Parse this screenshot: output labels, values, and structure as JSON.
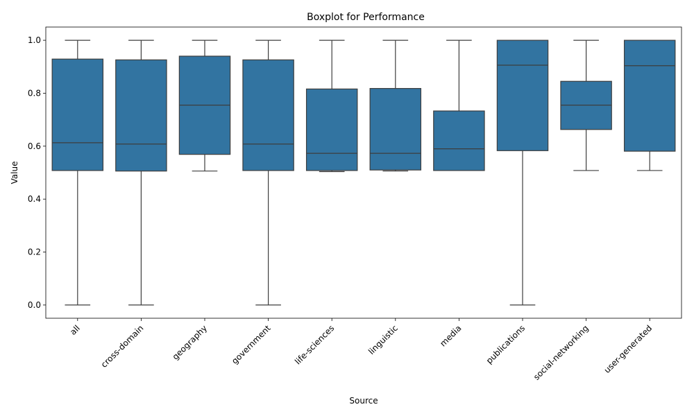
{
  "colors": {
    "box_fill": "#3274a1",
    "line": "#3d3d3d",
    "axis": "#000000"
  },
  "chart_data": {
    "type": "box",
    "title": "Boxplot for Performance",
    "xlabel": "Source",
    "ylabel": "Value",
    "ylim": [
      -0.05,
      1.05
    ],
    "yticks": [
      0.0,
      0.2,
      0.4,
      0.6,
      0.8,
      1.0
    ],
    "ytick_labels": [
      "0.0",
      "0.2",
      "0.4",
      "0.6",
      "0.8",
      "1.0"
    ],
    "categories": [
      "all",
      "cross-domain",
      "geography",
      "government",
      "life-sciences",
      "linguistic",
      "media",
      "publications",
      "social-networking",
      "user-generated"
    ],
    "boxes": [
      {
        "category": "all",
        "whisker_low": 0.0,
        "q1": 0.508,
        "median": 0.613,
        "q3": 0.929,
        "whisker_high": 1.0
      },
      {
        "category": "cross-domain",
        "whisker_low": 0.0,
        "q1": 0.506,
        "median": 0.608,
        "q3": 0.926,
        "whisker_high": 1.0
      },
      {
        "category": "geography",
        "whisker_low": 0.506,
        "q1": 0.569,
        "median": 0.755,
        "q3": 0.94,
        "whisker_high": 1.0
      },
      {
        "category": "government",
        "whisker_low": 0.0,
        "q1": 0.508,
        "median": 0.608,
        "q3": 0.926,
        "whisker_high": 1.0
      },
      {
        "category": "life-sciences",
        "whisker_low": 0.504,
        "q1": 0.508,
        "median": 0.573,
        "q3": 0.816,
        "whisker_high": 1.0
      },
      {
        "category": "linguistic",
        "whisker_low": 0.506,
        "q1": 0.51,
        "median": 0.573,
        "q3": 0.818,
        "whisker_high": 1.0
      },
      {
        "category": "media",
        "whisker_low": 0.508,
        "q1": 0.508,
        "median": 0.59,
        "q3": 0.733,
        "whisker_high": 1.0
      },
      {
        "category": "publications",
        "whisker_low": 0.0,
        "q1": 0.583,
        "median": 0.906,
        "q3": 1.0,
        "whisker_high": 1.0
      },
      {
        "category": "social-networking",
        "whisker_low": 0.508,
        "q1": 0.663,
        "median": 0.755,
        "q3": 0.845,
        "whisker_high": 1.0
      },
      {
        "category": "user-generated",
        "whisker_low": 0.508,
        "q1": 0.581,
        "median": 0.904,
        "q3": 1.0,
        "whisker_high": 1.0
      }
    ]
  }
}
